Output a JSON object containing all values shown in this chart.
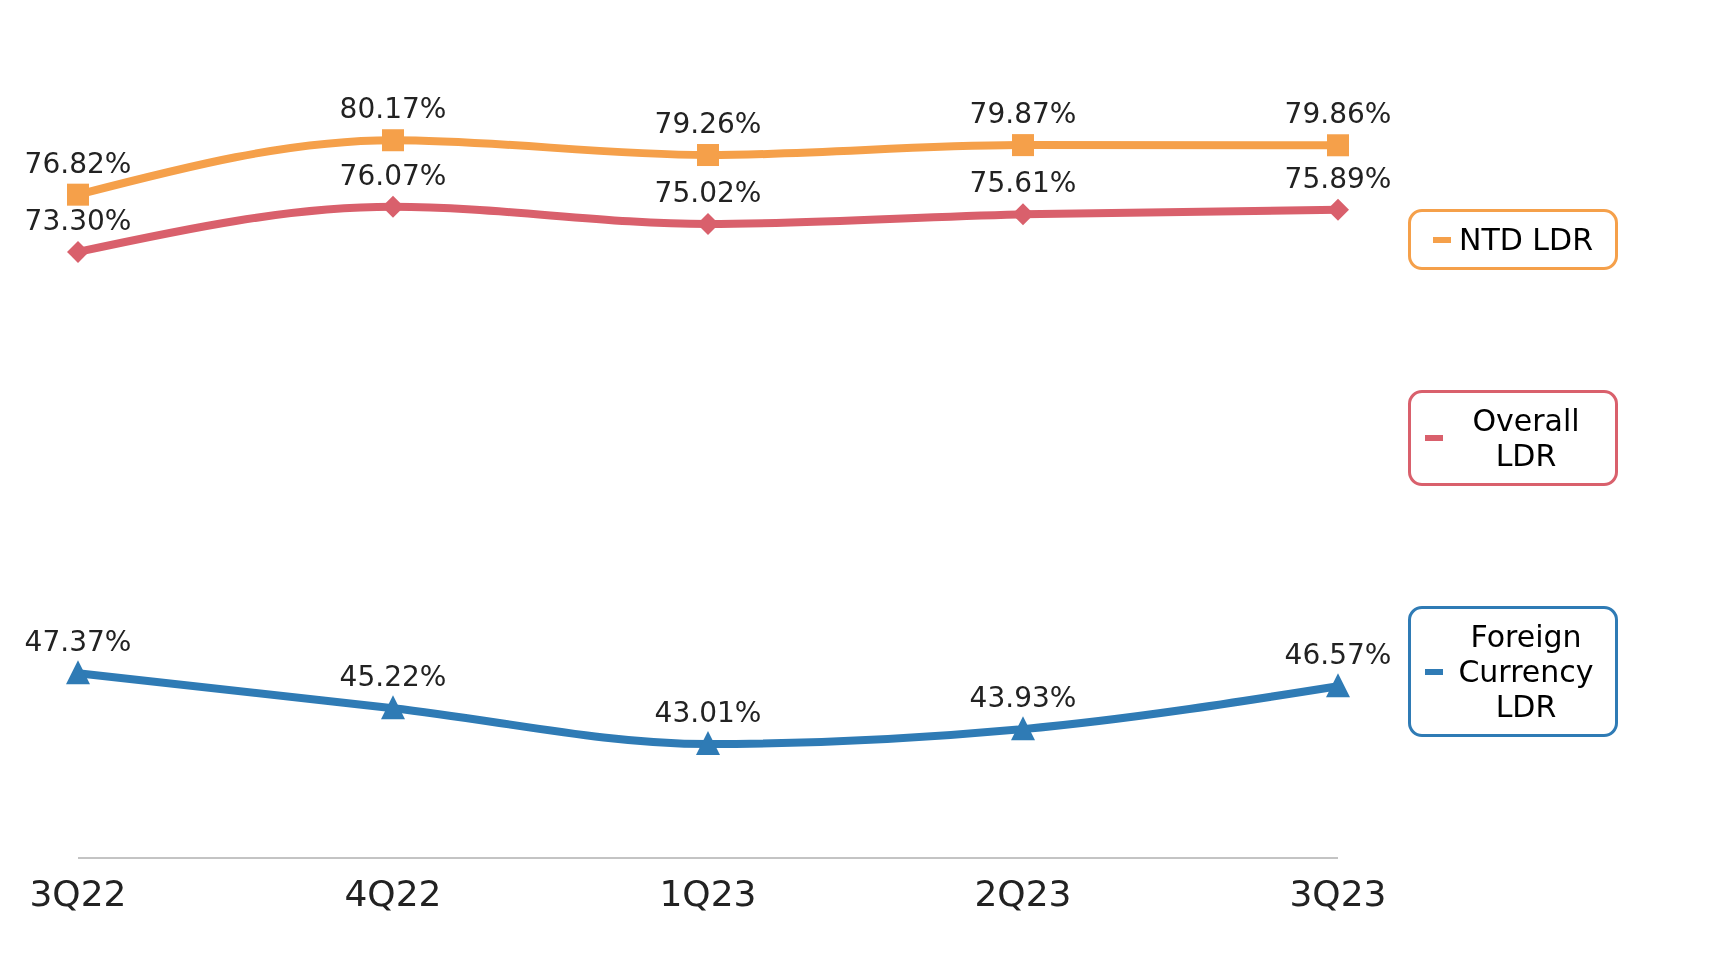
{
  "chart_data": {
    "type": "line",
    "categories": [
      "3Q22",
      "4Q22",
      "1Q23",
      "2Q23",
      "3Q23"
    ],
    "series": [
      {
        "name": "NTD LDR",
        "color": "#f5a04a",
        "marker": "square",
        "values": [
          76.82,
          80.17,
          79.26,
          79.87,
          79.86
        ],
        "value_labels": [
          "76.82%",
          "80.17%",
          "79.26%",
          "79.87%",
          "79.86%"
        ]
      },
      {
        "name": "Overall LDR",
        "color": "#d9606c",
        "marker": "diamond",
        "values": [
          73.3,
          76.07,
          75.02,
          75.61,
          75.89
        ],
        "value_labels": [
          "73.30%",
          "76.07%",
          "75.02%",
          "75.61%",
          "75.89%"
        ]
      },
      {
        "name": "Foreign Currency LDR",
        "color": "#2f7bb5",
        "marker": "triangle",
        "values": [
          47.37,
          45.22,
          43.01,
          43.93,
          46.57
        ],
        "value_labels": [
          "47.37%",
          "45.22%",
          "43.01%",
          "43.93%",
          "46.57%"
        ]
      }
    ],
    "legend": "right",
    "grid": false,
    "line_style": "solid"
  }
}
